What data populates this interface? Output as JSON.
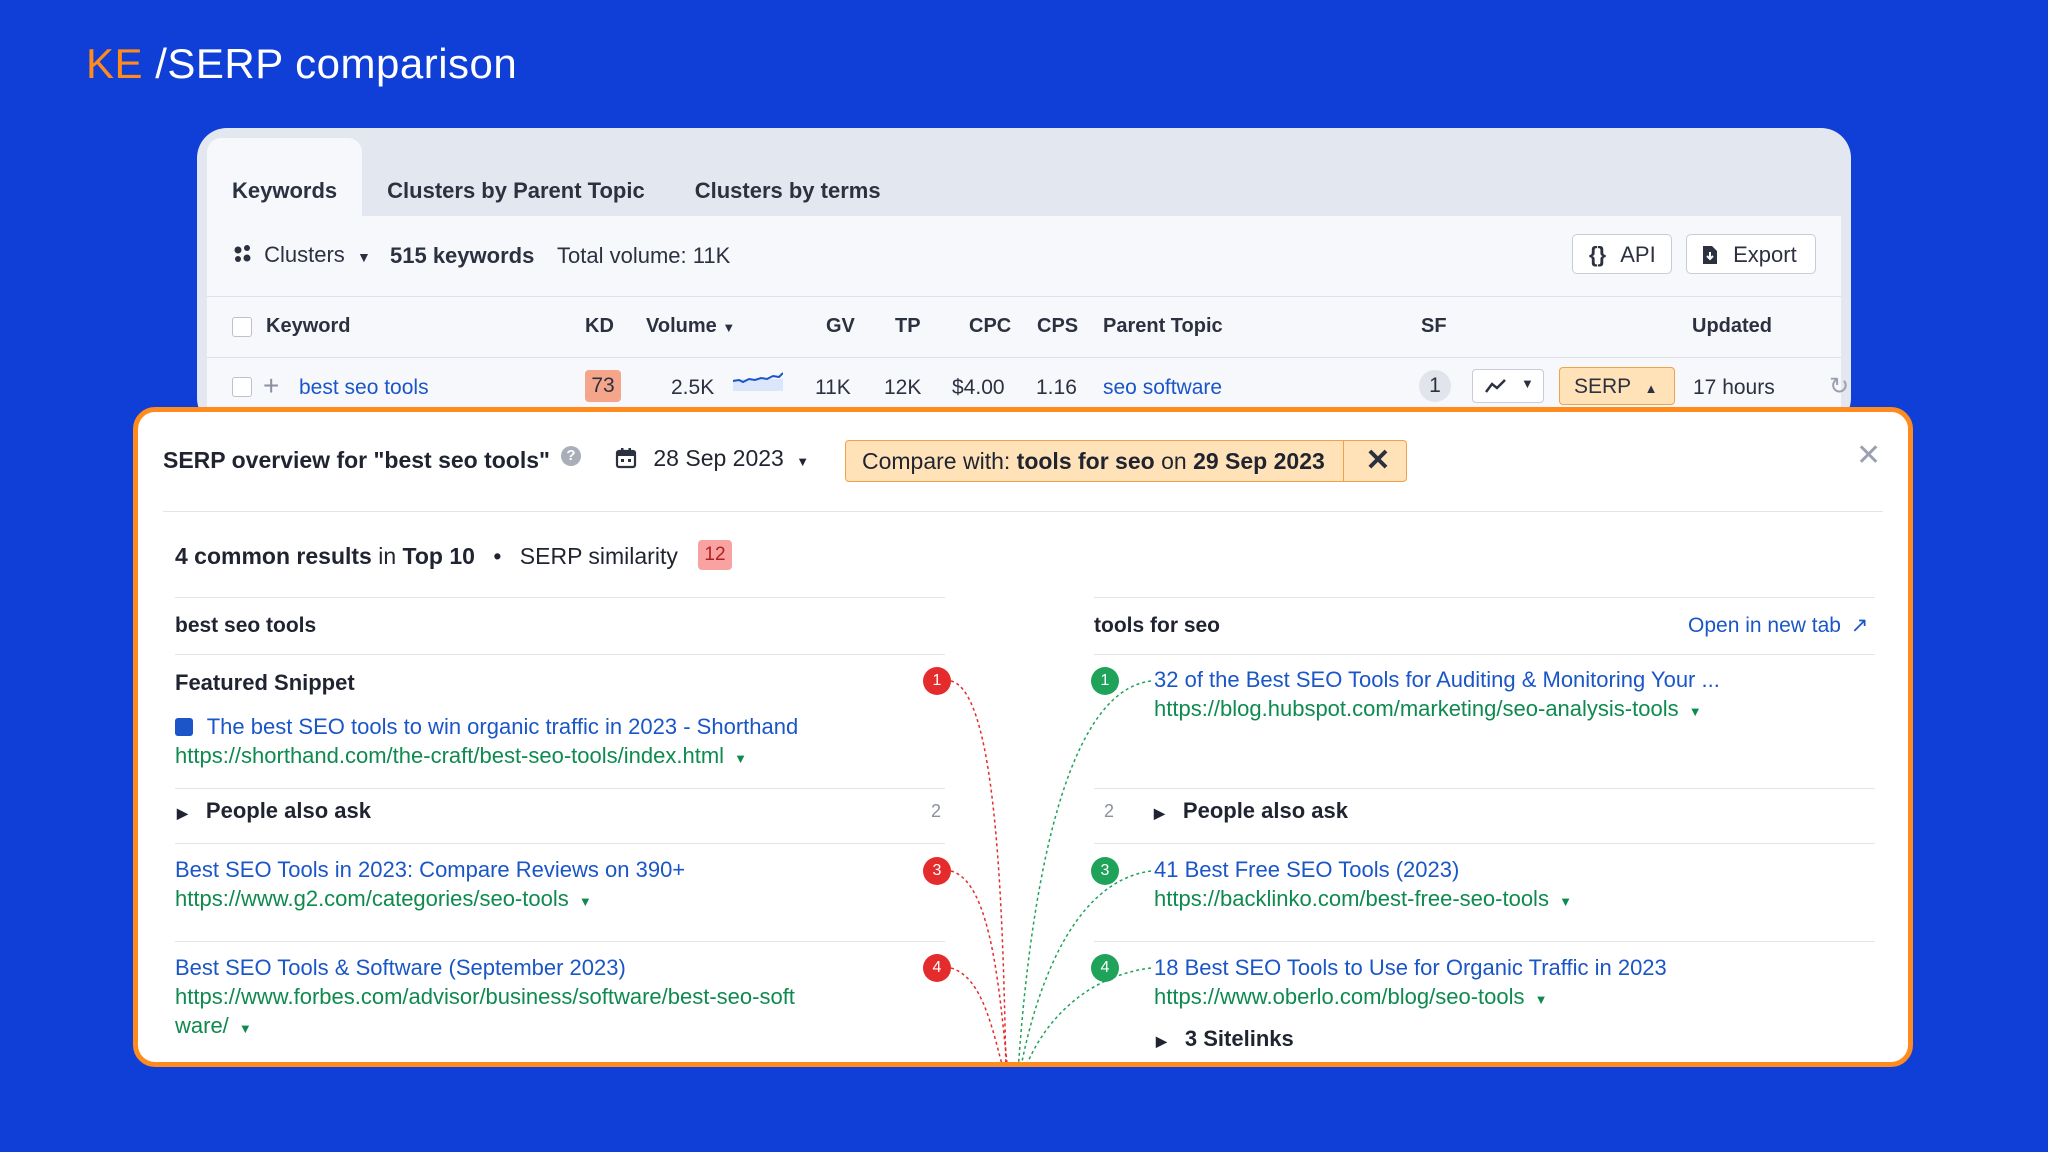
{
  "header": {
    "brand": "KE",
    "title": "/SERP comparison"
  },
  "tabs": [
    "Keywords",
    "Clusters by Parent Topic",
    "Clusters by terms"
  ],
  "toolbar": {
    "clusters_label": "Clusters",
    "keywords_count": "515 keywords",
    "total_volume": "Total volume: 11K",
    "api_label": "API",
    "export_label": "Export"
  },
  "table": {
    "headers": {
      "keyword": "Keyword",
      "kd": "KD",
      "volume": "Volume",
      "gv": "GV",
      "tp": "TP",
      "cpc": "CPC",
      "cps": "CPS",
      "parent_topic": "Parent Topic",
      "sf": "SF",
      "updated": "Updated"
    },
    "row": {
      "keyword": "best seo tools",
      "kd": "73",
      "volume": "2.5K",
      "gv": "11K",
      "tp": "12K",
      "cpc": "$4.00",
      "cps": "1.16",
      "parent_topic": "seo software",
      "sf": "1",
      "serp_label": "SERP",
      "updated": "17 hours"
    }
  },
  "serp": {
    "title": "SERP overview for \"best seo tools\"",
    "date": "28 Sep 2023",
    "compare_prefix": "Compare with:",
    "compare_keyword": "tools for seo",
    "compare_on": "on",
    "compare_date": "29 Sep 2023",
    "summary_bold": "4 common results",
    "summary_in": "in",
    "summary_top": "Top 10",
    "similarity_label": "SERP similarity",
    "similarity_value": "12",
    "left": {
      "heading": "best seo tools",
      "featured_label": "Featured Snippet",
      "featured_title": "The best SEO tools to win organic traffic in 2023 - Shorthand",
      "featured_url": "https://shorthand.com/the-craft/best-seo-tools/index.html",
      "paa_label": "People also ask",
      "paa_count": "2",
      "results": [
        {
          "pos": "1"
        },
        {
          "pos": "3",
          "title": "Best SEO Tools in 2023: Compare Reviews on 390+",
          "url": "https://www.g2.com/categories/seo-tools"
        },
        {
          "pos": "4",
          "title": "Best SEO Tools & Software (September 2023)",
          "url_line1": "https://www.forbes.com/advisor/business/software/best-seo-soft",
          "url_line2": "ware/"
        }
      ]
    },
    "right": {
      "heading": "tools for seo",
      "open_new_tab": "Open in new tab",
      "paa_label": "People also ask",
      "paa_count": "2",
      "sitelinks_label": "3 Sitelinks",
      "results": [
        {
          "pos": "1",
          "title": "32 of the Best SEO Tools for Auditing & Monitoring Your ...",
          "url": "https://blog.hubspot.com/marketing/seo-analysis-tools"
        },
        {
          "pos": "3",
          "title": "41 Best Free SEO Tools (2023)",
          "url": "https://backlinko.com/best-free-seo-tools"
        },
        {
          "pos": "4",
          "title": "18 Best SEO Tools to Use for Organic Traffic in 2023",
          "url": "https://www.oberlo.com/blog/seo-tools"
        }
      ]
    }
  },
  "colors": {
    "background": "#0f3fd6",
    "accent": "#ff8a1e",
    "link": "#1a56c7",
    "url": "#0f8a4f",
    "red": "#e42c2c",
    "green": "#1fa25a"
  }
}
